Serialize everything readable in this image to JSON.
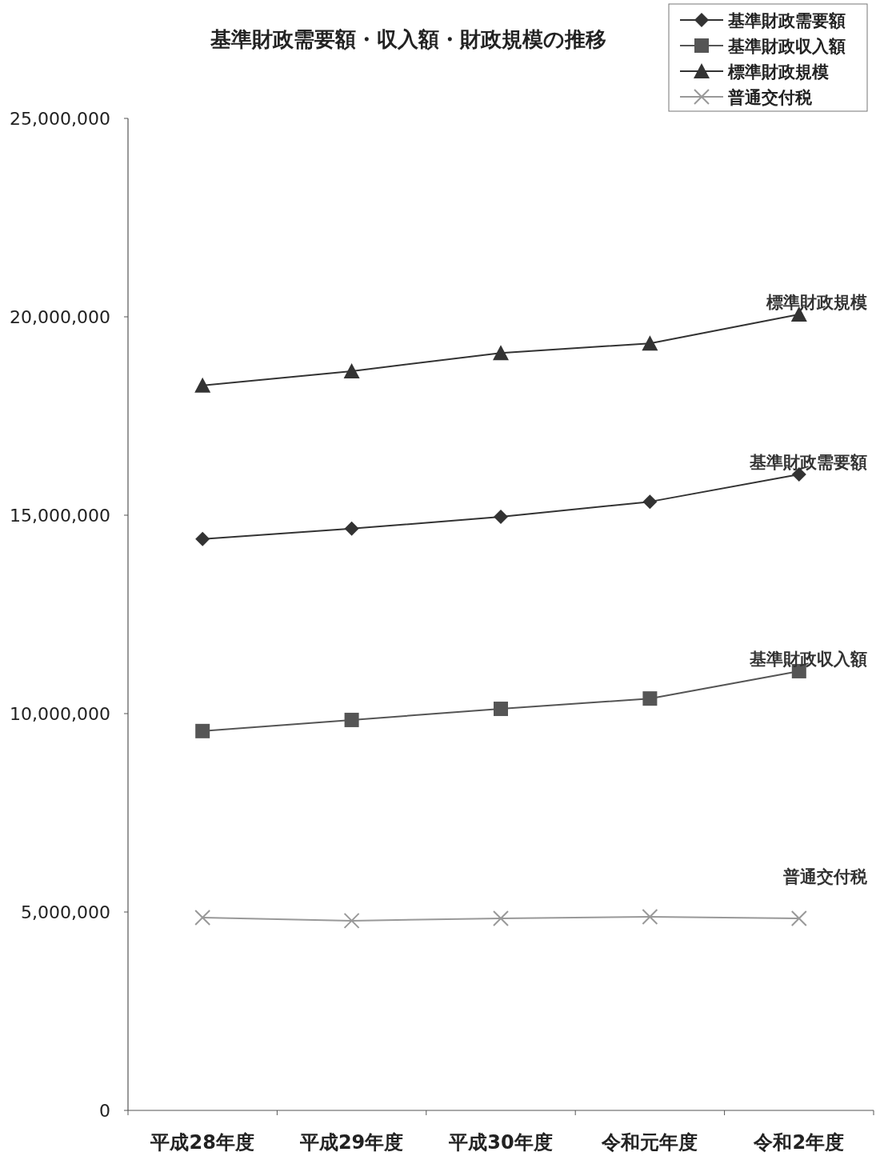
{
  "chart_data": {
    "type": "line",
    "title": "基準財政需要額・収入額・財政規模の推移",
    "categories": [
      "平成28年度",
      "平成29年度",
      "平成30年度",
      "令和元年度",
      "令和2年度"
    ],
    "series": [
      {
        "name": "基準財政需要額",
        "color": "#333333",
        "marker": "diamond",
        "values": [
          14400000,
          14660000,
          14960000,
          15340000,
          16030000
        ]
      },
      {
        "name": "基準財政収入額",
        "color": "#555555",
        "marker": "square",
        "values": [
          9560000,
          9840000,
          10120000,
          10380000,
          11070000
        ]
      },
      {
        "name": "標準財政規模",
        "color": "#333333",
        "marker": "triangle",
        "values": [
          18270000,
          18630000,
          19090000,
          19330000,
          20060000
        ]
      },
      {
        "name": "普通交付税",
        "color": "#999999",
        "marker": "cross",
        "values": [
          4860000,
          4780000,
          4840000,
          4880000,
          4840000
        ]
      }
    ],
    "ylim": [
      0,
      25000000
    ],
    "yticks": [
      {
        "value": 0,
        "label": "0"
      },
      {
        "value": 5000000,
        "label": "5,000,000"
      },
      {
        "value": 10000000,
        "label": "10,000,000"
      },
      {
        "value": 15000000,
        "label": "15,000,000"
      },
      {
        "value": 20000000,
        "label": "20,000,000"
      },
      {
        "value": 25000000,
        "label": "25,000,000"
      }
    ],
    "grid": false,
    "legend": "top right",
    "line_style": "solid"
  }
}
